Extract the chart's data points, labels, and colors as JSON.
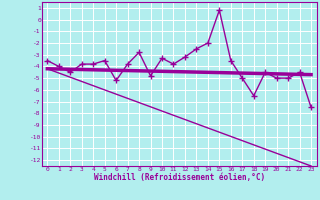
{
  "xlabel": "Windchill (Refroidissement éolien,°C)",
  "background_color": "#b2eeee",
  "grid_color": "#ffffff",
  "line_color": "#990099",
  "xlim": [
    -0.5,
    23.5
  ],
  "ylim": [
    -12.5,
    1.5
  ],
  "yticks": [
    1,
    0,
    -1,
    -2,
    -3,
    -4,
    -5,
    -6,
    -7,
    -8,
    -9,
    -10,
    -11,
    -12
  ],
  "xticks": [
    0,
    1,
    2,
    3,
    4,
    5,
    6,
    7,
    8,
    9,
    10,
    11,
    12,
    13,
    14,
    15,
    16,
    17,
    18,
    19,
    20,
    21,
    22,
    23
  ],
  "line1_x": [
    0,
    1,
    2,
    3,
    4,
    5,
    6,
    7,
    8,
    9,
    10,
    11,
    12,
    13,
    14,
    15,
    16,
    17,
    18,
    19,
    20,
    21,
    22,
    23
  ],
  "line1_y": [
    -3.5,
    -4.0,
    -4.5,
    -3.8,
    -3.8,
    -3.5,
    -5.2,
    -3.8,
    -2.8,
    -4.8,
    -3.3,
    -3.8,
    -3.2,
    -2.5,
    -2.0,
    0.8,
    -3.5,
    -5.0,
    -6.5,
    -4.5,
    -5.0,
    -5.0,
    -4.5,
    -7.5
  ],
  "line2_x": [
    0,
    23
  ],
  "line2_y": [
    -4.2,
    -4.7
  ],
  "line3_x": [
    0,
    23
  ],
  "line3_y": [
    -4.2,
    -12.5
  ]
}
